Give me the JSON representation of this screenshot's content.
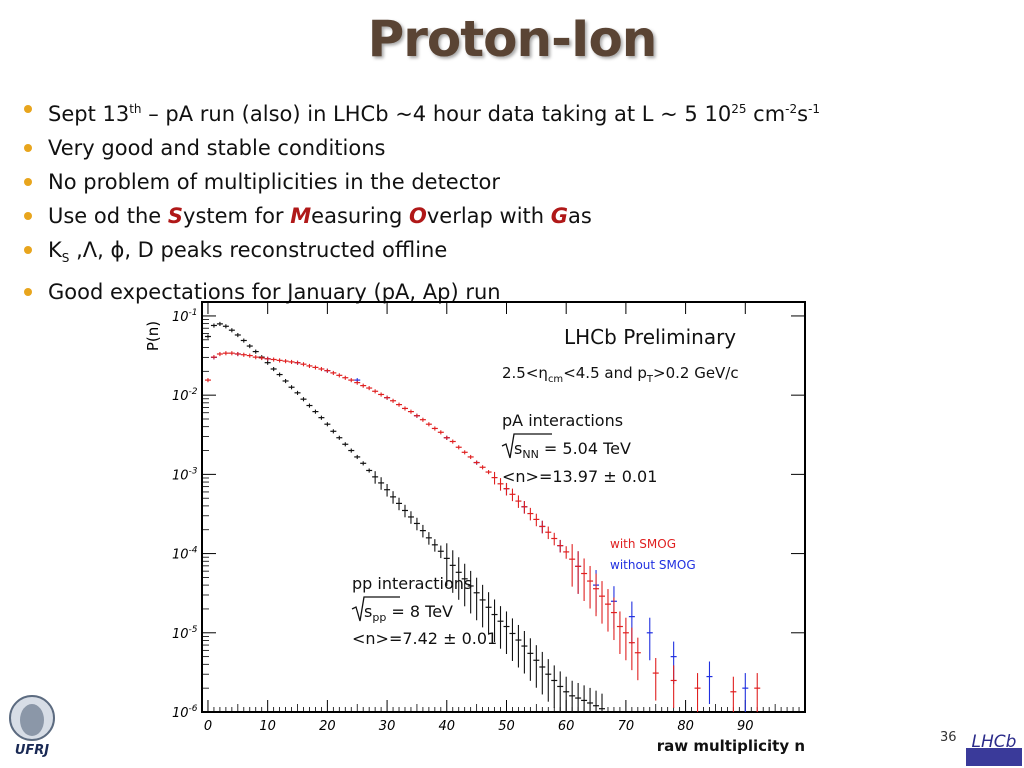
{
  "slide": {
    "title": "Proton-Ion",
    "page_number": "36",
    "logo_left_text": "UFRJ",
    "logo_right_text": "LHCb"
  },
  "bullets": {
    "b1": {
      "t1": "Sept 13",
      "t1_sup": "th",
      "t2": "  – pA run (also) in LHCb ~4 hour data taking at L ~ 5 10",
      "t2_sup": "25",
      "t3": " cm",
      "t3_sup": "-2",
      "t4": "s",
      "t4_sup": "-1"
    },
    "b2": "Very good and stable conditions",
    "b3": "No problem of multiplicities in the detector",
    "b4": {
      "pre": "Use od the ",
      "s": "S",
      "s_rest": "ystem for ",
      "m": "M",
      "m_rest": "easuring ",
      "o": "O",
      "o_rest": "verlap with ",
      "g": "G",
      "g_rest": "as"
    },
    "b5": {
      "k": "K",
      "k_sub": "S",
      "rest": " ,Λ, ϕ, D peaks reconstructed offline"
    },
    "b6": "Good expectations for January (pA, Ap) run"
  },
  "colors": {
    "bullet": "#e8a51d",
    "title": "#5a4434",
    "pp": "#111111",
    "with_smog": "#e02020",
    "without_smog": "#2030e0"
  },
  "chart_data": {
    "type": "scatter",
    "ylabel": "P(n)",
    "xlabel": "raw multiplicity n",
    "yscale": "log",
    "xlim": [
      -1,
      100
    ],
    "ylim": [
      1e-06,
      0.15
    ],
    "xticks": [
      "0",
      "10",
      "20",
      "30",
      "40",
      "50",
      "60",
      "70",
      "80",
      "90"
    ],
    "xtick_values": [
      0,
      10,
      20,
      30,
      40,
      50,
      60,
      70,
      80,
      90
    ],
    "yticks": [
      {
        "base": "10",
        "exp": "-1",
        "value": 0.1
      },
      {
        "base": "10",
        "exp": "-2",
        "value": 0.01
      },
      {
        "base": "10",
        "exp": "-3",
        "value": 0.001
      },
      {
        "base": "10",
        "exp": "-4",
        "value": 0.0001
      },
      {
        "base": "10",
        "exp": "-5",
        "value": 1e-05
      },
      {
        "base": "10",
        "exp": "-6",
        "value": 1e-06
      }
    ],
    "annotations": {
      "preliminary": "LHCb Preliminary",
      "cuts": "2.5<η",
      "cuts_sub": "cm",
      "cuts_mid": "<4.5 and p",
      "cuts_sub2": "T",
      "cuts_end": ">0.2 GeV/c",
      "pa_title": "pA interactions",
      "pa_energy_sym": "s",
      "pa_energy_sub": "NN",
      "pa_energy": " = 5.04 TeV",
      "pa_mean": "<n>=13.97 ± 0.01",
      "pp_title": "pp interactions",
      "pp_energy_sym": "s",
      "pp_energy_sub": "pp",
      "pp_energy": " = 8 TeV",
      "pp_mean": "<n>=7.42 ± 0.01"
    },
    "legend": {
      "placement": "inside-right"
    },
    "series": [
      {
        "name": "with SMOG",
        "color": "#e02020",
        "x": [
          0,
          1,
          2,
          3,
          4,
          5,
          6,
          7,
          8,
          9,
          10,
          11,
          12,
          13,
          14,
          15,
          16,
          17,
          18,
          19,
          20,
          21,
          22,
          23,
          24,
          25,
          26,
          27,
          28,
          29,
          30,
          31,
          32,
          33,
          34,
          35,
          36,
          37,
          38,
          39,
          40,
          41,
          42,
          43,
          44,
          45,
          46,
          47,
          48,
          49,
          50,
          51,
          52,
          53,
          54,
          55,
          56,
          57,
          58,
          59,
          60,
          61,
          62,
          63,
          64,
          65,
          66,
          67,
          68,
          69,
          70,
          71,
          72,
          75,
          78,
          82,
          88,
          92
        ],
        "y": [
          0.0155,
          0.0302,
          0.0331,
          0.0339,
          0.0339,
          0.0331,
          0.0324,
          0.0316,
          0.0302,
          0.0295,
          0.0288,
          0.0282,
          0.0275,
          0.0269,
          0.0263,
          0.0257,
          0.0246,
          0.0234,
          0.0224,
          0.0214,
          0.0204,
          0.0191,
          0.0178,
          0.0166,
          0.0155,
          0.0144,
          0.0132,
          0.0123,
          0.0112,
          0.0102,
          0.0093,
          0.0085,
          0.0076,
          0.0068,
          0.0062,
          0.0055,
          0.0049,
          0.0043,
          0.0038,
          0.0034,
          0.0029,
          0.0026,
          0.0022,
          0.0019,
          0.00166,
          0.00141,
          0.00123,
          0.00107,
          0.00091,
          0.00076,
          0.00066,
          0.00056,
          0.00046,
          0.00039,
          0.00032,
          0.00027,
          0.00022,
          0.000186,
          0.000155,
          0.000126,
          0.000105,
          8.5e-05,
          6.9e-05,
          5.6e-05,
          4.5e-05,
          3.6e-05,
          2.9e-05,
          2.3e-05,
          1.8e-05,
          1.2e-05,
          1e-05,
          7.5e-06,
          5.6e-06,
          3.1e-06,
          2.5e-06,
          2e-06,
          1.8e-06,
          2e-06
        ]
      },
      {
        "name": "without SMOG",
        "color": "#2030e0",
        "x": [
          1,
          5,
          10,
          15,
          20,
          25,
          30,
          35,
          40,
          45,
          50,
          53,
          56,
          59,
          62,
          65,
          68,
          71,
          74,
          78,
          84,
          90
        ],
        "y": [
          0.03,
          0.0331,
          0.0288,
          0.0257,
          0.0204,
          0.0155,
          0.0093,
          0.0055,
          0.0029,
          0.00141,
          0.00066,
          0.00039,
          0.00022,
          0.000126,
          6.9e-05,
          4e-05,
          2.5e-05,
          1.6e-05,
          1e-05,
          5e-06,
          2.8e-06,
          2e-06
        ]
      },
      {
        "name": "pp interactions",
        "color": "#111111",
        "x": [
          0,
          1,
          2,
          3,
          4,
          5,
          6,
          7,
          8,
          9,
          10,
          11,
          12,
          13,
          14,
          15,
          16,
          17,
          18,
          19,
          20,
          21,
          22,
          23,
          24,
          25,
          26,
          27,
          28,
          29,
          30,
          31,
          32,
          33,
          34,
          35,
          36,
          37,
          38,
          39,
          40,
          41,
          42,
          43,
          44,
          45,
          46,
          47,
          48,
          49,
          50,
          51,
          52,
          53,
          54,
          55,
          56,
          57,
          58,
          59,
          60,
          61,
          62,
          63,
          64,
          65,
          66
        ],
        "y": [
          0.055,
          0.0758,
          0.0794,
          0.0741,
          0.0661,
          0.0575,
          0.049,
          0.0417,
          0.0355,
          0.0302,
          0.0257,
          0.0214,
          0.0182,
          0.0151,
          0.0126,
          0.0107,
          0.0089,
          0.0074,
          0.0062,
          0.0052,
          0.0043,
          0.0035,
          0.0029,
          0.0024,
          0.002,
          0.00166,
          0.00138,
          0.00112,
          0.00093,
          0.00078,
          0.00064,
          0.00052,
          0.00043,
          0.00035,
          0.00029,
          0.00024,
          0.000195,
          0.000158,
          0.000129,
          0.000107,
          8.7e-05,
          7.1e-05,
          5.8e-05,
          4.8e-05,
          3.9e-05,
          3.2e-05,
          2.6e-05,
          2.1e-05,
          1.7e-05,
          1.4e-05,
          1.2e-05,
          9.8e-06,
          8.1e-06,
          6.8e-06,
          5.5e-06,
          4.5e-06,
          3.7e-06,
          3e-06,
          2.5e-06,
          2.1e-06,
          1.8e-06,
          1.6e-06,
          1.5e-06,
          1.4e-06,
          1.3e-06,
          1.2e-06,
          1.1e-06
        ]
      }
    ]
  }
}
